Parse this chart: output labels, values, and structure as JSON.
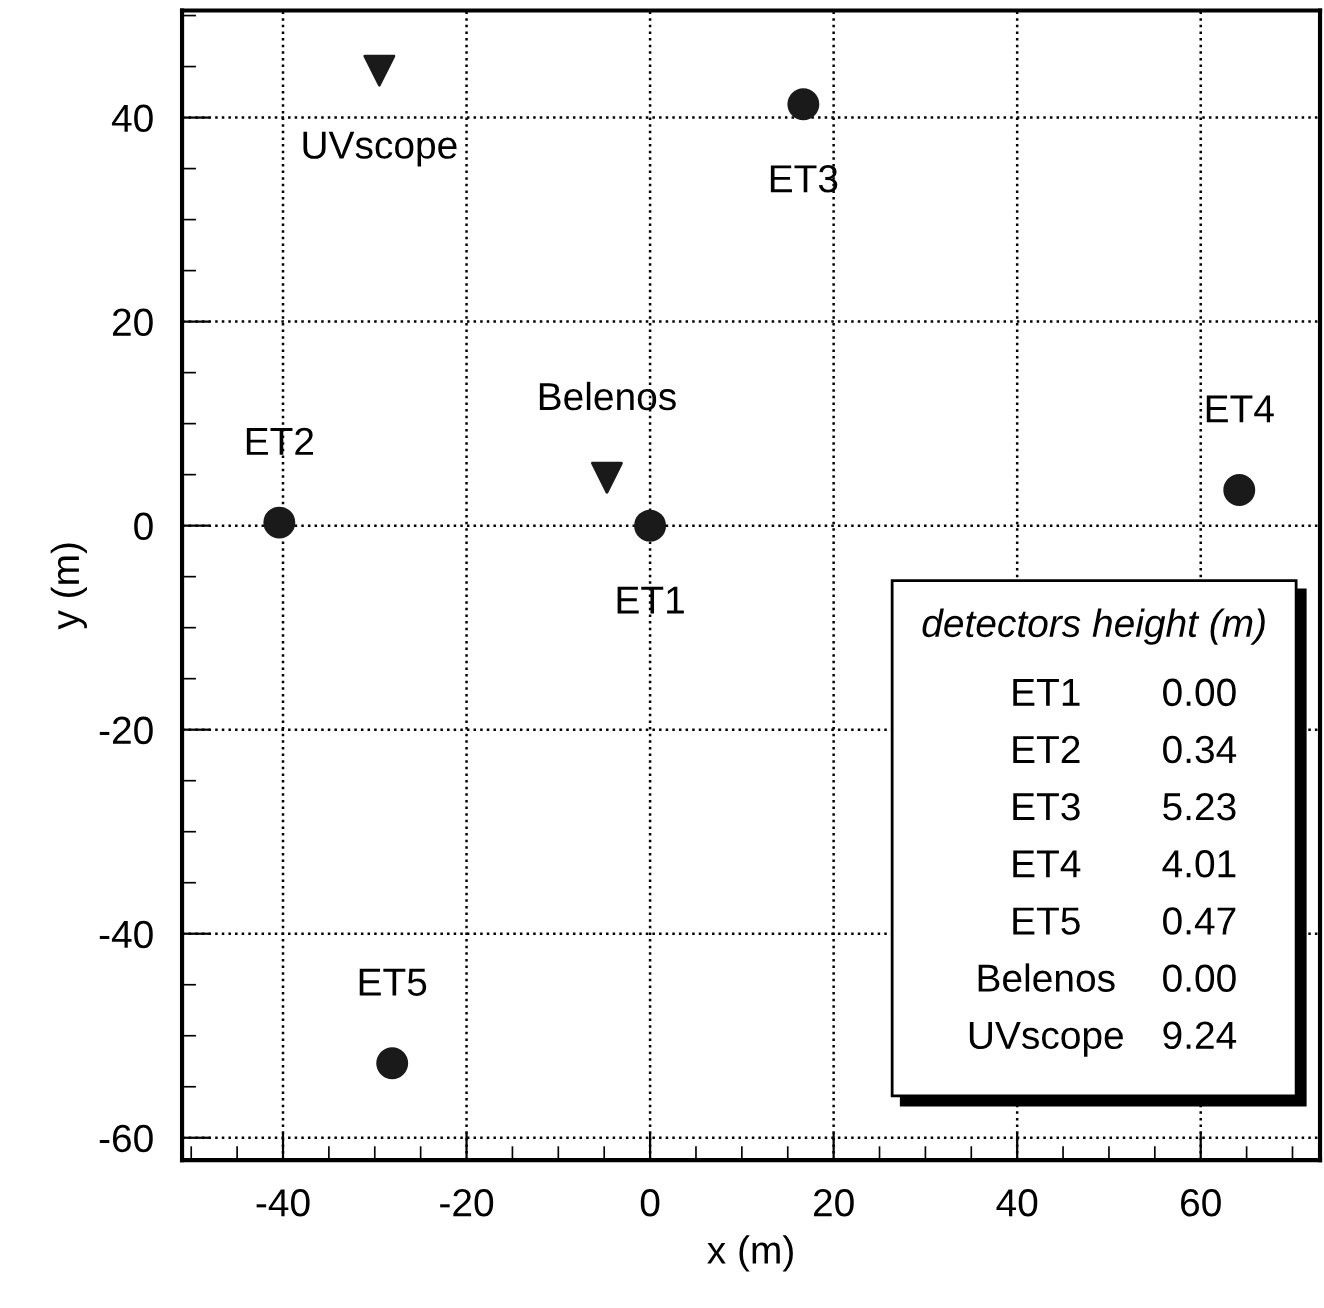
{
  "chart_data": {
    "type": "scatter",
    "xlabel": "x (m)",
    "ylabel": "y (m)",
    "series": [
      {
        "color": "#1a1a1a",
        "marker": "circle",
        "x": [
          0,
          -40.4,
          16.7,
          64.2,
          -28.1
        ],
        "values": [
          0,
          0.3,
          41.3,
          3.5,
          -52.7
        ]
      },
      {
        "color": "#1a1a1a",
        "marker": "triangle",
        "x": [
          -4.7,
          -29.5
        ],
        "values": [
          4.7,
          44.6
        ]
      }
    ],
    "annotations": [
      {
        "text": "ET1",
        "x": 0,
        "y": 0
      },
      {
        "text": "ET2",
        "x": -40.4,
        "y": 0.3
      },
      {
        "text": "ET3",
        "x": 16.7,
        "y": 41.3
      },
      {
        "text": "ET4",
        "x": 64.2,
        "y": 3.5
      },
      {
        "text": "ET5",
        "x": -28.1,
        "y": -52.7
      },
      {
        "text": "Belenos",
        "x": -4.7,
        "y": 4.7
      },
      {
        "text": "UVscope",
        "x": -29.5,
        "y": 44.6
      },
      "detectors height (m)",
      "ET1",
      "0.00",
      "ET2",
      "0.34",
      "ET3",
      "5.23",
      "ET4",
      "4.01",
      "ET5",
      "0.47",
      "Belenos",
      "0.00",
      "UVscope",
      "9.24"
    ],
    "xlim": [
      -51,
      73
    ],
    "ylim": [
      -62.2,
      50.5
    ],
    "xticks": [
      -40,
      -20,
      0,
      20,
      40,
      60
    ],
    "yticks": [
      -60,
      -40,
      -20,
      0,
      20,
      40
    ],
    "grid": true
  }
}
